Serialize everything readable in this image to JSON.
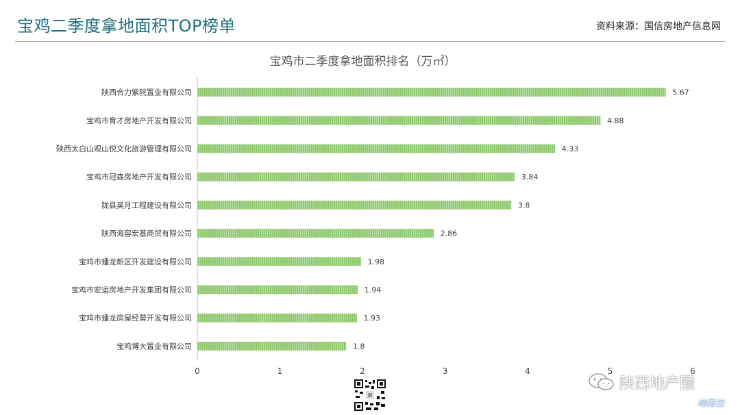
{
  "page_title": "宝鸡二季度拿地面积TOP榜单",
  "source": "资料来源：国信房地产信息网",
  "watermark": "陕西地产圈",
  "watermark_sub": "动态云",
  "colors": {
    "title": "#1f6f7f",
    "bar": "#8fc86e",
    "bar_stripe": "#b9e0a2",
    "axis": "#bfbfbf",
    "chart_title": "#595959"
  },
  "icons": [
    "wechat-icon",
    "qr-code"
  ],
  "chart_data": {
    "type": "bar",
    "orientation": "horizontal",
    "title": "宝鸡市二季度拿地面积排名（万㎡）",
    "categories": [
      "陕西合力紫院置业有限公司",
      "宝鸡市育才房地产开发有限公司",
      "陕西太白山观山悦文化旅游管理有限公司",
      "宝鸡市冠森房地产开发有限公司",
      "陇县昊月工程建设有限公司",
      "陕西海容宏基商贸有限公司",
      "宝鸡市蟠龙新区开发建设有限公司",
      "宝鸡市宏运房地产开发集团有限公司",
      "宝鸡市蟠龙房屋经营开发有限公司",
      "宝鸡博大置业有限公司"
    ],
    "values": [
      5.67,
      4.88,
      4.33,
      3.84,
      3.8,
      2.86,
      1.98,
      1.94,
      1.93,
      1.8
    ],
    "value_labels": [
      "5.67",
      "4.88",
      "4.33",
      "3.84",
      "3.8",
      "2.86",
      "1.98",
      "1.94",
      "1.93",
      "1.8"
    ],
    "x_ticks": [
      "0",
      "1",
      "2",
      "3",
      "4",
      "5",
      "6"
    ],
    "xlim": [
      0,
      6
    ],
    "grid": false,
    "legend": "none"
  }
}
